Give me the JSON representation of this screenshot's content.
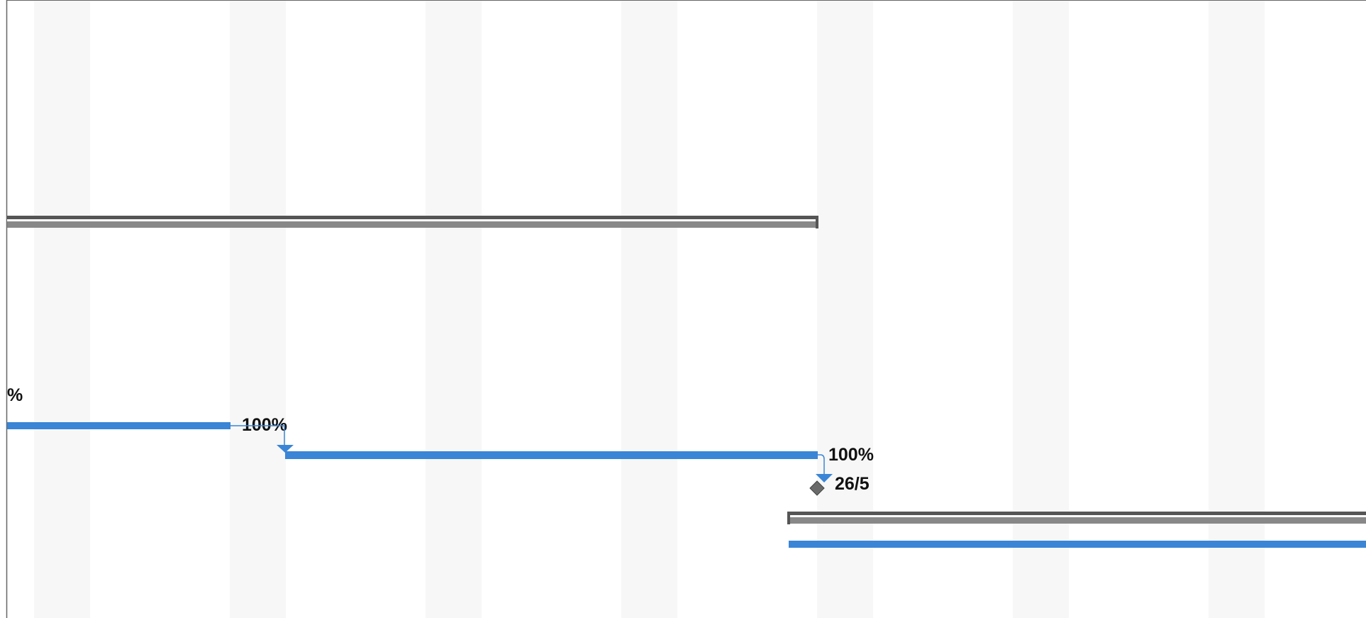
{
  "gantt": {
    "colors": {
      "task_bar": "#3a85d6",
      "summary_bar": "#888888",
      "summary_edge": "#555555",
      "nonworking_shade": "#f7f7f7",
      "grid_border": "#666666",
      "milestone": "#6a6a6a",
      "label_text": "#111111"
    },
    "labels": {
      "partial_percent": "%",
      "task1_percent": "100%",
      "task2_percent": "100%",
      "milestone_date": "26/5"
    }
  }
}
